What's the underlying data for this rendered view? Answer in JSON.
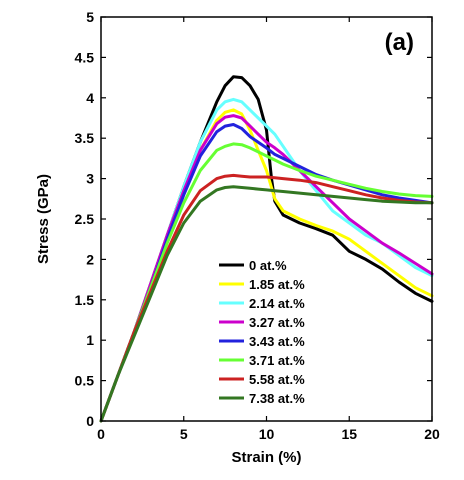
{
  "chart_data": {
    "type": "line",
    "title": "",
    "panel_label": "(a)",
    "xlabel": "Strain (%)",
    "ylabel": "Stress (GPa)",
    "xlim": [
      0,
      20
    ],
    "ylim": [
      0,
      5
    ],
    "xticks": [
      0,
      5,
      10,
      15,
      20
    ],
    "yticks": [
      0,
      0.5,
      1,
      1.5,
      2,
      2.5,
      3,
      3.5,
      4,
      4.5,
      5
    ],
    "grid": false,
    "legend_position": "lower-center",
    "series": [
      {
        "name": "0 at.%",
        "color": "#000000",
        "x": [
          0,
          1,
          2,
          3,
          4,
          5,
          6,
          7,
          7.5,
          8,
          8.5,
          9,
          9.5,
          10,
          10.3,
          10.5,
          11,
          12,
          13,
          14,
          15,
          16,
          17,
          18,
          19,
          20
        ],
        "y": [
          0,
          0.55,
          1.1,
          1.7,
          2.3,
          2.9,
          3.45,
          3.95,
          4.15,
          4.26,
          4.25,
          4.15,
          3.98,
          3.6,
          3.0,
          2.72,
          2.55,
          2.45,
          2.38,
          2.3,
          2.1,
          2.0,
          1.88,
          1.72,
          1.58,
          1.48
        ]
      },
      {
        "name": "1.85 at.%",
        "color": "#ffff00",
        "x": [
          0,
          1,
          2,
          3,
          4,
          5,
          6,
          7,
          7.5,
          8,
          8.5,
          9,
          9.5,
          10,
          10.5,
          11,
          12,
          13,
          14,
          15,
          16,
          17,
          18,
          19,
          20
        ],
        "y": [
          0,
          0.55,
          1.1,
          1.7,
          2.3,
          2.85,
          3.35,
          3.72,
          3.82,
          3.85,
          3.8,
          3.6,
          3.35,
          3.1,
          2.75,
          2.6,
          2.5,
          2.42,
          2.35,
          2.25,
          2.1,
          1.95,
          1.8,
          1.65,
          1.55
        ]
      },
      {
        "name": "2.14 at.%",
        "color": "#66ffff",
        "x": [
          0,
          1,
          2,
          3,
          4,
          5,
          6,
          7,
          7.5,
          8,
          8.5,
          9,
          9.5,
          10,
          10.5,
          11,
          12,
          13,
          14,
          15,
          16,
          17,
          18,
          19,
          20
        ],
        "y": [
          0,
          0.55,
          1.1,
          1.7,
          2.3,
          2.9,
          3.45,
          3.85,
          3.95,
          3.98,
          3.95,
          3.85,
          3.75,
          3.65,
          3.55,
          3.4,
          3.1,
          2.85,
          2.6,
          2.45,
          2.3,
          2.2,
          2.05,
          1.9,
          1.8
        ]
      },
      {
        "name": "3.27 at.%",
        "color": "#cc00cc",
        "x": [
          0,
          1,
          2,
          3,
          4,
          5,
          6,
          7,
          7.5,
          8,
          8.5,
          9,
          9.5,
          10,
          10.5,
          11,
          12,
          13,
          14,
          15,
          16,
          17,
          18,
          19,
          20
        ],
        "y": [
          0,
          0.55,
          1.1,
          1.7,
          2.3,
          2.85,
          3.35,
          3.68,
          3.76,
          3.78,
          3.75,
          3.65,
          3.55,
          3.45,
          3.38,
          3.3,
          3.1,
          2.9,
          2.7,
          2.5,
          2.35,
          2.2,
          2.08,
          1.95,
          1.82
        ]
      },
      {
        "name": "3.43 at.%",
        "color": "#2222dd",
        "x": [
          0,
          1,
          2,
          3,
          4,
          5,
          6,
          7,
          7.5,
          8,
          8.5,
          9,
          9.5,
          10,
          10.5,
          11,
          12,
          13,
          14,
          15,
          16,
          17,
          18,
          19,
          20
        ],
        "y": [
          0,
          0.55,
          1.1,
          1.65,
          2.25,
          2.8,
          3.28,
          3.58,
          3.65,
          3.67,
          3.62,
          3.52,
          3.45,
          3.38,
          3.3,
          3.25,
          3.15,
          3.05,
          2.98,
          2.92,
          2.86,
          2.8,
          2.76,
          2.73,
          2.7
        ]
      },
      {
        "name": "3.71 at.%",
        "color": "#66ff33",
        "x": [
          0,
          1,
          2,
          3,
          4,
          5,
          6,
          7,
          7.5,
          8,
          8.5,
          9,
          9.5,
          10,
          10.5,
          11,
          12,
          13,
          14,
          15,
          16,
          17,
          18,
          19,
          20
        ],
        "y": [
          0,
          0.55,
          1.1,
          1.65,
          2.2,
          2.7,
          3.1,
          3.35,
          3.4,
          3.43,
          3.42,
          3.38,
          3.33,
          3.28,
          3.23,
          3.18,
          3.1,
          3.03,
          2.98,
          2.93,
          2.88,
          2.84,
          2.81,
          2.79,
          2.78
        ]
      },
      {
        "name": "5.58 at.%",
        "color": "#cc2222",
        "x": [
          0,
          1,
          2,
          3,
          4,
          5,
          6,
          7,
          7.5,
          8,
          8.5,
          9,
          9.5,
          10,
          10.5,
          11,
          12,
          13,
          14,
          15,
          16,
          17,
          18,
          19,
          20
        ],
        "y": [
          0,
          0.55,
          1.1,
          1.6,
          2.1,
          2.55,
          2.85,
          3.0,
          3.03,
          3.04,
          3.03,
          3.02,
          3.02,
          3.02,
          3.01,
          3.0,
          2.98,
          2.95,
          2.9,
          2.85,
          2.8,
          2.76,
          2.73,
          2.71,
          2.7
        ]
      },
      {
        "name": "7.38 at.%",
        "color": "#337722",
        "x": [
          0,
          1,
          2,
          3,
          4,
          5,
          6,
          7,
          7.5,
          8,
          8.5,
          9,
          9.5,
          10,
          10.5,
          11,
          12,
          13,
          14,
          15,
          16,
          17,
          18,
          19,
          20
        ],
        "y": [
          0,
          0.55,
          1.05,
          1.55,
          2.05,
          2.45,
          2.72,
          2.86,
          2.89,
          2.9,
          2.89,
          2.88,
          2.87,
          2.86,
          2.85,
          2.84,
          2.82,
          2.8,
          2.78,
          2.76,
          2.74,
          2.72,
          2.71,
          2.7,
          2.7
        ]
      }
    ]
  }
}
